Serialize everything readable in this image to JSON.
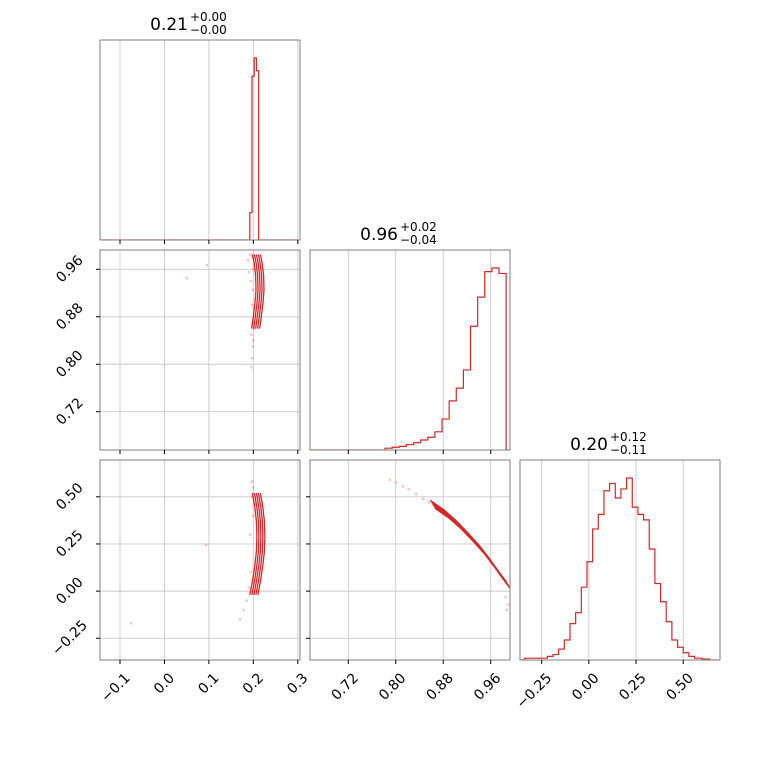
{
  "colors": {
    "line": "#d62728",
    "grid": "#c8c8c8",
    "frame": "#7f7f7f"
  },
  "chart_data": {
    "type": "corner",
    "parameters": [
      {
        "id": "p0",
        "range": [
          -0.145,
          0.305
        ],
        "ticks": [
          -0.1,
          0.0,
          0.1,
          0.2,
          0.3
        ],
        "tick_labels": [
          "−0.1",
          "0.0",
          "0.1",
          "0.2",
          "0.3"
        ],
        "title": {
          "median": "0.21",
          "plus": "+0.00",
          "minus": "−0.00"
        },
        "histogram": {
          "edges": [
            0.186,
            0.192,
            0.197,
            0.202,
            0.207,
            0.212,
            0.217
          ],
          "counts": [
            0,
            0.15,
            0.9,
            1.0,
            0.93,
            0.0
          ]
        }
      },
      {
        "id": "p1",
        "range": [
          0.6555,
          0.9925
        ],
        "ticks": [
          0.72,
          0.8,
          0.88,
          0.96
        ],
        "tick_labels": [
          "0.72",
          "0.80",
          "0.88",
          "0.96"
        ],
        "title": {
          "median": "0.96",
          "plus": "+0.02",
          "minus": "−0.04"
        },
        "histogram": {
          "edges": [
            0.782,
            0.794,
            0.806,
            0.818,
            0.83,
            0.842,
            0.854,
            0.866,
            0.878,
            0.89,
            0.902,
            0.914,
            0.926,
            0.938,
            0.95,
            0.962,
            0.974,
            0.986,
            0.992
          ],
          "counts": [
            0.01,
            0.015,
            0.02,
            0.03,
            0.04,
            0.055,
            0.07,
            0.1,
            0.17,
            0.27,
            0.34,
            0.44,
            0.68,
            0.84,
            0.98,
            1.0,
            0.97,
            0.0
          ]
        }
      },
      {
        "id": "p2",
        "range": [
          -0.365,
          0.695
        ],
        "ticks": [
          -0.25,
          0.0,
          0.25,
          0.5
        ],
        "tick_labels": [
          "−0.25",
          "0.00",
          "0.25",
          "0.50"
        ],
        "title": {
          "median": "0.20",
          "plus": "+0.12",
          "minus": "−0.11"
        },
        "histogram": {
          "edges": [
            -0.34,
            -0.22,
            -0.19,
            -0.16,
            -0.13,
            -0.1,
            -0.07,
            -0.04,
            -0.01,
            0.02,
            0.05,
            0.08,
            0.11,
            0.14,
            0.17,
            0.2,
            0.23,
            0.26,
            0.29,
            0.32,
            0.35,
            0.38,
            0.41,
            0.44,
            0.47,
            0.5,
            0.53,
            0.56,
            0.6,
            0.64,
            0.695
          ],
          "counts": [
            0.01,
            0.02,
            0.03,
            0.06,
            0.11,
            0.2,
            0.26,
            0.4,
            0.54,
            0.72,
            0.8,
            0.93,
            0.97,
            0.89,
            0.94,
            1.0,
            0.84,
            0.8,
            0.77,
            0.61,
            0.42,
            0.32,
            0.21,
            0.11,
            0.07,
            0.04,
            0.02,
            0.01,
            0.005,
            0.0
          ]
        }
      }
    ],
    "joint": [
      {
        "x": "p0",
        "y": "p1",
        "ridge": [
          [
            0.207,
            0.985
          ],
          [
            0.211,
            0.97
          ],
          [
            0.214,
            0.95
          ],
          [
            0.215,
            0.925
          ],
          [
            0.213,
            0.905
          ],
          [
            0.209,
            0.88
          ],
          [
            0.205,
            0.86
          ]
        ],
        "scatter": [
          [
            0.193,
            0.985
          ],
          [
            0.198,
            0.98
          ],
          [
            0.188,
            0.975
          ],
          [
            0.2,
            0.96
          ],
          [
            0.195,
            0.94
          ],
          [
            0.199,
            0.925
          ],
          [
            0.197,
            0.9
          ],
          [
            0.2,
            0.87
          ],
          [
            0.196,
            0.85
          ],
          [
            0.199,
            0.83
          ],
          [
            0.197,
            0.81
          ],
          [
            0.195,
            0.795
          ],
          [
            0.2,
            0.84
          ],
          [
            0.202,
            0.86
          ],
          [
            0.095,
            0.967
          ],
          [
            0.05,
            0.945
          ],
          [
            0.19,
            0.955
          ]
        ]
      },
      {
        "x": "p0",
        "y": "p2",
        "ridge": [
          [
            0.207,
            0.52
          ],
          [
            0.212,
            0.45
          ],
          [
            0.216,
            0.37
          ],
          [
            0.217,
            0.29
          ],
          [
            0.216,
            0.21
          ],
          [
            0.212,
            0.13
          ],
          [
            0.207,
            0.05
          ],
          [
            0.201,
            -0.02
          ]
        ],
        "scatter": [
          [
            0.197,
            0.58
          ],
          [
            0.2,
            0.55
          ],
          [
            0.198,
            0.5
          ],
          [
            0.203,
            0.46
          ],
          [
            0.195,
            0.1
          ],
          [
            0.19,
            0.02
          ],
          [
            0.185,
            -0.05
          ],
          [
            0.178,
            -0.1
          ],
          [
            0.17,
            -0.15
          ],
          [
            0.094,
            0.245
          ],
          [
            -0.075,
            -0.17
          ],
          [
            0.2,
            0.4
          ],
          [
            0.193,
            0.3
          ]
        ]
      },
      {
        "x": "p1",
        "y": "p2",
        "ridge": [
          [
            0.862,
            0.46
          ],
          [
            0.885,
            0.41
          ],
          [
            0.905,
            0.355
          ],
          [
            0.925,
            0.29
          ],
          [
            0.945,
            0.22
          ],
          [
            0.962,
            0.15
          ],
          [
            0.978,
            0.08
          ],
          [
            0.99,
            0.03
          ]
        ],
        "scatter": [
          [
            0.79,
            0.59
          ],
          [
            0.8,
            0.575
          ],
          [
            0.812,
            0.555
          ],
          [
            0.822,
            0.54
          ],
          [
            0.834,
            0.515
          ],
          [
            0.846,
            0.49
          ],
          [
            0.856,
            0.47
          ],
          [
            0.868,
            0.445
          ],
          [
            0.88,
            0.42
          ],
          [
            0.985,
            -0.03
          ],
          [
            0.99,
            -0.07
          ],
          [
            0.987,
            -0.1
          ]
        ]
      }
    ]
  }
}
